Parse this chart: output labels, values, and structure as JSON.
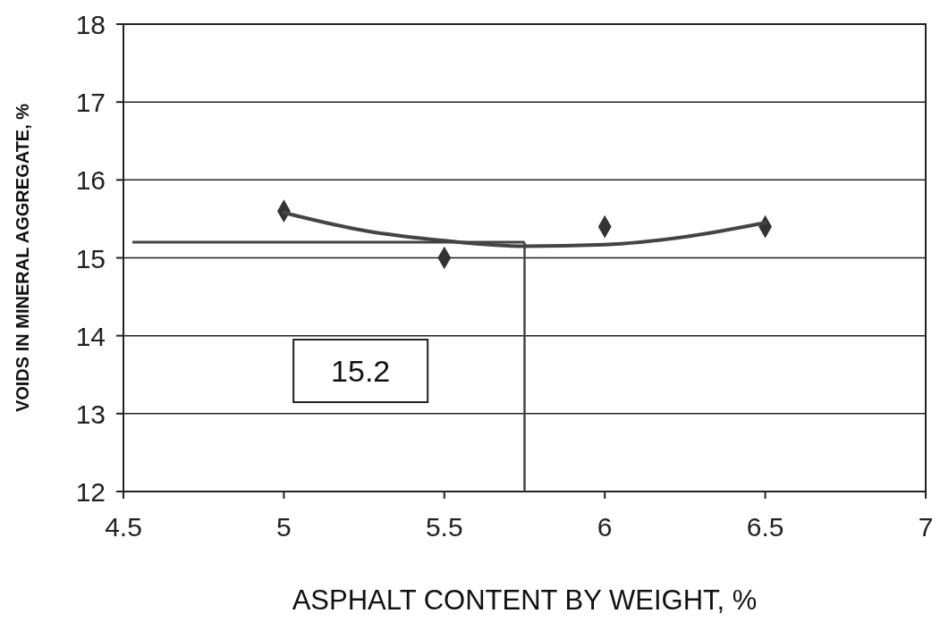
{
  "chart_data": {
    "type": "scatter",
    "xlabel": "ASPHALT CONTENT BY WEIGHT, %",
    "ylabel": "VOIDS IN MINERAL AGGREGATE, %",
    "x": [
      5,
      5.5,
      6,
      6.5
    ],
    "series": [
      {
        "color": "#333333",
        "values": [
          15.6,
          15.0,
          15.4,
          15.4
        ],
        "marker": "diamond"
      },
      {
        "type": "line",
        "color": "#444444",
        "x": [
          5,
          5.25,
          5.5,
          5.75,
          6,
          6.25,
          6.5
        ],
        "values": [
          15.58,
          15.35,
          15.22,
          15.15,
          15.17,
          15.27,
          15.45
        ],
        "line_style": "solid"
      }
    ],
    "xlim": [
      4.5,
      7
    ],
    "xticks": [
      4.5,
      5,
      5.5,
      6,
      6.5,
      7
    ],
    "ylim": [
      12,
      18
    ],
    "yticks": [
      12,
      13,
      14,
      15,
      16,
      17,
      18
    ],
    "grid": "y",
    "annotations": [
      "15.2"
    ],
    "ref_lines": [
      {
        "axis": "y",
        "value": 15.2,
        "color": "#444444"
      },
      {
        "axis": "x",
        "value": 5.75,
        "color": "#444444"
      }
    ]
  }
}
